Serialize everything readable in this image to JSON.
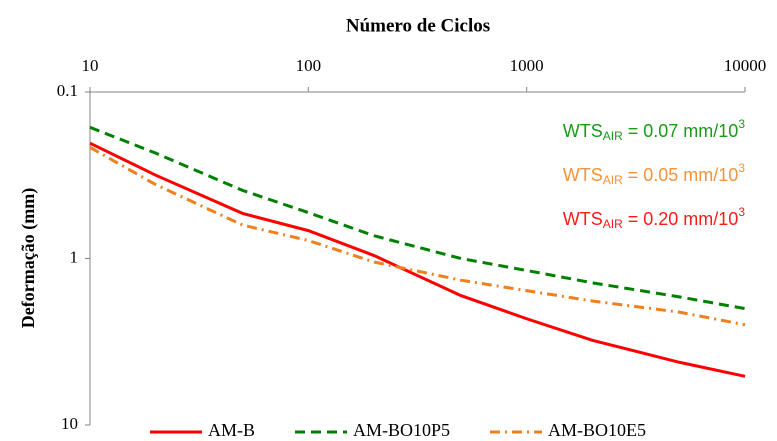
{
  "chart_data": {
    "type": "line",
    "x_label": "Número de Ciclos",
    "y_label": "Deformação (mm)",
    "x_log": true,
    "y_log": true,
    "y_inverted": true,
    "xlim": [
      10,
      10000
    ],
    "xticks": [
      10,
      100,
      1000,
      10000
    ],
    "ylim": [
      0.1,
      10
    ],
    "yticks": [
      0.1,
      1,
      10
    ],
    "legend": "bottom",
    "x": [
      10,
      20,
      50,
      100,
      200,
      500,
      1000,
      2000,
      5000,
      10000
    ],
    "series": [
      {
        "name": "AM-B",
        "color": "#ff0000",
        "dash": "solid",
        "values": [
          0.203,
          0.316,
          0.536,
          0.68,
          0.96,
          1.67,
          2.3,
          3.1,
          4.2,
          5.1
        ]
      },
      {
        "name": "AM-BO10P5",
        "color": "#008000",
        "dash": "dashed",
        "values": [
          0.163,
          0.233,
          0.39,
          0.53,
          0.73,
          1.0,
          1.18,
          1.4,
          1.7,
          2.0
        ]
      },
      {
        "name": "AM-BO10E5",
        "color": "#f07f1e",
        "dash": "dashdot",
        "values": [
          0.215,
          0.36,
          0.63,
          0.78,
          1.05,
          1.35,
          1.56,
          1.8,
          2.1,
          2.5
        ]
      }
    ],
    "annotations": [
      {
        "prefix": "WTS",
        "sub": "AIR",
        "text": " = 0.07 mm/10",
        "sup": "3",
        "color": "#1a9a1a"
      },
      {
        "prefix": "WTS",
        "sub": "AIR",
        "text": " = 0.05 mm/10",
        "sup": "3",
        "color": "#f5923a"
      },
      {
        "prefix": "WTS",
        "sub": "AIR",
        "text": " = 0.20 mm/10",
        "sup": "3",
        "color": "#ff1a1a"
      }
    ]
  }
}
